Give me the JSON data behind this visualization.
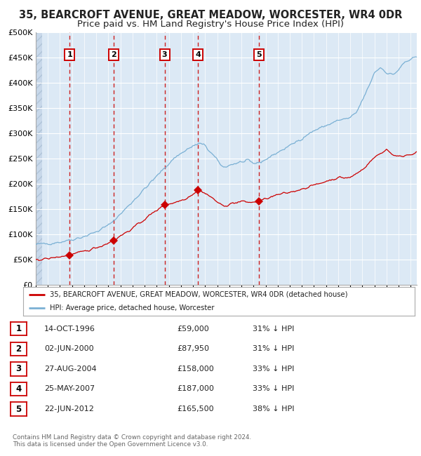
{
  "title_line1": "35, BEARCROFT AVENUE, GREAT MEADOW, WORCESTER, WR4 0DR",
  "title_line2": "Price paid vs. HM Land Registry's House Price Index (HPI)",
  "legend_label_red": "35, BEARCROFT AVENUE, GREAT MEADOW, WORCESTER, WR4 0DR (detached house)",
  "legend_label_blue": "HPI: Average price, detached house, Worcester",
  "footer_line1": "Contains HM Land Registry data © Crown copyright and database right 2024.",
  "footer_line2": "This data is licensed under the Open Government Licence v3.0.",
  "transactions": [
    {
      "num": 1,
      "date": "14-OCT-1996",
      "price": 59000,
      "pct": "31%",
      "year": 1996.79
    },
    {
      "num": 2,
      "date": "02-JUN-2000",
      "price": 87950,
      "pct": "31%",
      "year": 2000.42
    },
    {
      "num": 3,
      "date": "27-AUG-2004",
      "price": 158000,
      "pct": "33%",
      "year": 2004.65
    },
    {
      "num": 4,
      "date": "25-MAY-2007",
      "price": 187000,
      "pct": "33%",
      "year": 2007.4
    },
    {
      "num": 5,
      "date": "22-JUN-2012",
      "price": 165500,
      "pct": "38%",
      "year": 2012.47
    }
  ],
  "ylim": [
    0,
    500000
  ],
  "xlim_start": 1994.0,
  "xlim_end": 2025.5,
  "plot_bg_color": "#dce9f5",
  "hatch_color": "#c8d8ea",
  "grid_color": "#ffffff",
  "red_line_color": "#cc0000",
  "blue_line_color": "#7ab0d4",
  "vline_color": "#cc2222",
  "marker_color": "#cc0000",
  "title_fontsize": 10.5,
  "subtitle_fontsize": 9.5
}
